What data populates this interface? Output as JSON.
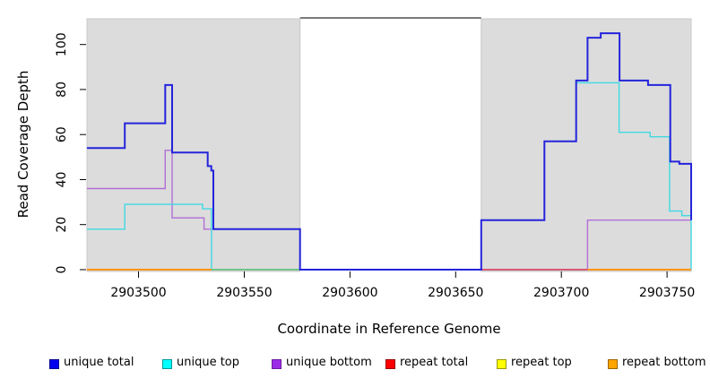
{
  "figure": {
    "type": "step-line coverage plot",
    "x_axis": {
      "title": "Coordinate in Reference Genome",
      "ticks": [
        2903500,
        2903550,
        2903600,
        2903650,
        2903700,
        2903750
      ],
      "tick_labels": [
        "2903500",
        "2903550",
        "2903600",
        "2903650",
        "2903700",
        "2903750"
      ],
      "range": [
        2903475.6,
        2903761.4
      ]
    },
    "y_axis": {
      "title": "Read Coverage Depth",
      "ticks": [
        0,
        20,
        40,
        60,
        80,
        100
      ],
      "tick_labels": [
        "0",
        "20",
        "40",
        "60",
        "80",
        "100"
      ],
      "range": [
        0,
        111.4
      ]
    },
    "shaded_repeat_regions": [
      {
        "x_start": 2903475.6,
        "x_end": 2903576.4,
        "fill": "#DCDCDC"
      },
      {
        "x_start": 2903662.1,
        "x_end": 2903761.4,
        "fill": "#DCDCDC"
      }
    ],
    "gap_region": {
      "x_start": 2903576.4,
      "x_end": 2903662.1,
      "top_border_color": "#7a7a7a"
    }
  },
  "chart_data": {
    "type": "line",
    "note": "step functions: each point is [genome_coordinate, read_depth] holding that depth until the next point; end_drop is the depth the line falls to at the segment right edge",
    "series": [
      {
        "name": "unique bottom",
        "color": "#B16FD8",
        "width": 1.4,
        "segments": [
          {
            "points": [
              [
                2903475.6,
                36
              ],
              [
                2903512.6,
                53
              ],
              [
                2903515.9,
                23
              ],
              [
                2903531,
                18
              ],
              [
                2903576.4,
                0
              ],
              [
                2903712.4,
                22
              ]
            ],
            "end": 2903761.4,
            "end_drop": null
          }
        ]
      },
      {
        "name": "unique top",
        "color": "#3FD9E2",
        "width": 1.4,
        "segments": [
          {
            "points": [
              [
                2903475.6,
                18
              ],
              [
                2903493.5,
                29
              ],
              [
                2903530.3,
                27
              ],
              [
                2903534.5,
                0
              ],
              [
                2903662.1,
                22
              ],
              [
                2903692,
                57
              ],
              [
                2903707,
                83
              ],
              [
                2903727.3,
                61
              ],
              [
                2903742,
                59
              ],
              [
                2903751.2,
                26
              ],
              [
                2903757,
                24
              ]
            ],
            "end": 2903761.4,
            "end_drop": 0
          }
        ]
      },
      {
        "name": "repeat top",
        "color": "#69BE6E",
        "width": 1.5,
        "segments": [
          {
            "points": [
              [
                2903534.5,
                0
              ]
            ],
            "end": 2903576.4,
            "end_drop": null
          }
        ]
      },
      {
        "name": "repeat total",
        "color": "#DC4056",
        "width": 1.5,
        "segments": [
          {
            "points": [
              [
                2903662.1,
                0
              ]
            ],
            "end": 2903712.4,
            "end_drop": null
          }
        ]
      },
      {
        "name": "repeat bottom",
        "color": "#FF9514",
        "width": 2,
        "segments": [
          {
            "points": [
              [
                2903475.6,
                0
              ]
            ],
            "end": 2903534.5,
            "end_drop": null
          },
          {
            "points": [
              [
                2903712.4,
                0
              ]
            ],
            "end": 2903761.4,
            "end_drop": null
          }
        ]
      },
      {
        "name": "unique total",
        "color": "#2424DC",
        "width": 2,
        "segments": [
          {
            "points": [
              [
                2903475.6,
                54
              ],
              [
                2903493.5,
                65
              ],
              [
                2903512.6,
                82
              ],
              [
                2903515.9,
                52
              ],
              [
                2903532.7,
                46
              ],
              [
                2903534.4,
                44
              ],
              [
                2903535.4,
                18
              ],
              [
                2903576.4,
                0
              ],
              [
                2903662.1,
                22
              ],
              [
                2903692,
                57
              ],
              [
                2903707,
                84
              ],
              [
                2903712.4,
                103
              ],
              [
                2903718.6,
                105
              ],
              [
                2903727.5,
                84
              ],
              [
                2903741,
                82
              ],
              [
                2903751.5,
                48
              ],
              [
                2903755.8,
                47
              ]
            ],
            "end": 2903761.4,
            "end_drop": 22
          }
        ]
      }
    ],
    "title": "",
    "xlabel": "Coordinate in Reference Genome",
    "ylabel": "Read Coverage Depth",
    "xlim": [
      2903475.6,
      2903761.4
    ],
    "ylim": [
      0,
      111.4
    ],
    "grid": false,
    "legend_position": "bottom"
  },
  "legend": {
    "items": [
      {
        "label": "unique total",
        "fill": "#0000EE",
        "border": "#000090"
      },
      {
        "label": "unique top",
        "fill": "#00FFFF",
        "border": "#009999"
      },
      {
        "label": "unique bottom",
        "fill": "#9C2BE8",
        "border": "#6A1BA0"
      },
      {
        "label": "repeat total",
        "fill": "#FF0000",
        "border": "#990000"
      },
      {
        "label": "repeat top",
        "fill": "#FFFF00",
        "border": "#999900"
      },
      {
        "label": "repeat bottom",
        "fill": "#FFA500",
        "border": "#A06500"
      }
    ]
  }
}
